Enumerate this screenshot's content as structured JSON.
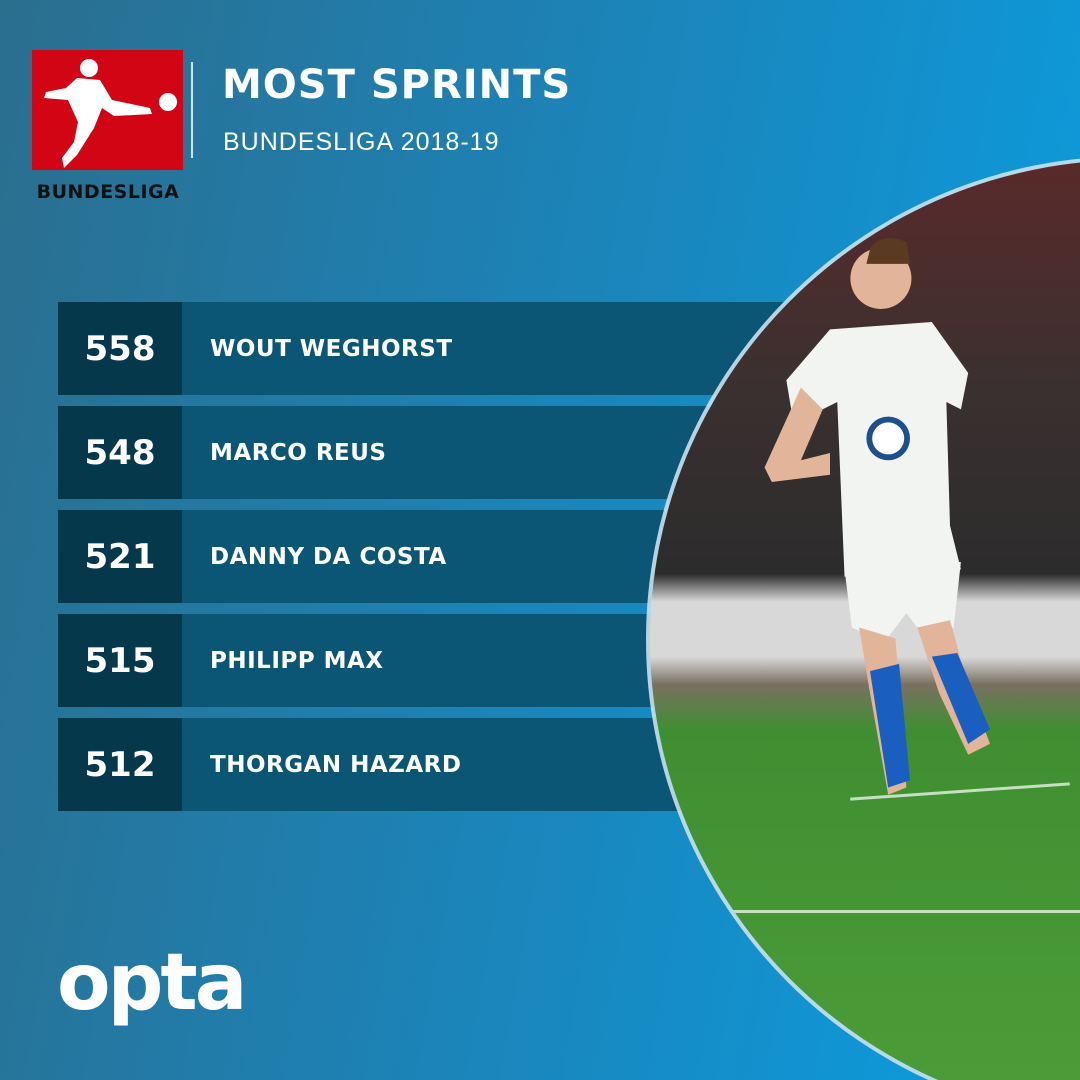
{
  "header": {
    "title": "MOST SPRINTS",
    "subtitle": "BUNDESLIGA 2018-19",
    "logo_text": "BUNDESLIGA"
  },
  "rankings": [
    {
      "value": "558",
      "player": "WOUT WEGHORST"
    },
    {
      "value": "548",
      "player": "MARCO REUS"
    },
    {
      "value": "521",
      "player": "DANNY DA COSTA"
    },
    {
      "value": "515",
      "player": "PHILIPP MAX"
    },
    {
      "value": "512",
      "player": "THORGAN HAZARD"
    }
  ],
  "footer": {
    "brand": "opta"
  },
  "colors": {
    "logo_red": "#d20515",
    "value_box": "#05384b",
    "row_bg": "#0b5675",
    "accent_blue": "#0a9ee2"
  }
}
